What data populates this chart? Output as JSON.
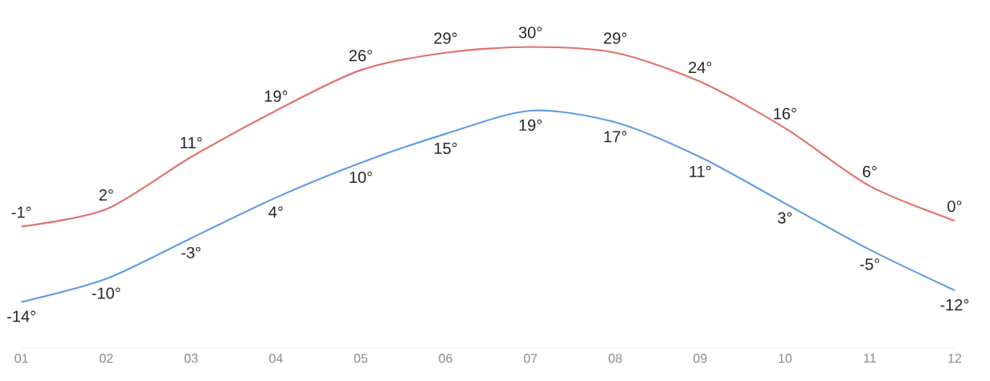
{
  "chart_data": {
    "type": "line",
    "categories": [
      "01",
      "02",
      "03",
      "04",
      "05",
      "06",
      "07",
      "08",
      "09",
      "10",
      "11",
      "12"
    ],
    "series": [
      {
        "color": "#e3716c",
        "values": [
          -1,
          2,
          11,
          19,
          26,
          29,
          30,
          29,
          24,
          16,
          6,
          0
        ],
        "value_labels": [
          "-1°",
          "2°",
          "11°",
          "19°",
          "26°",
          "29°",
          "30°",
          "29°",
          "24°",
          "16°",
          "6°",
          "0°"
        ]
      },
      {
        "color": "#5f9de6",
        "values": [
          -14,
          -10,
          -3,
          4,
          10,
          15,
          19,
          17,
          11,
          3,
          -5,
          -12
        ],
        "value_labels": [
          "-14°",
          "-10°",
          "-3°",
          "4°",
          "10°",
          "15°",
          "19°",
          "17°",
          "11°",
          "3°",
          "-5°",
          "-12°"
        ]
      }
    ],
    "marker": "none",
    "line_style": "solid"
  }
}
